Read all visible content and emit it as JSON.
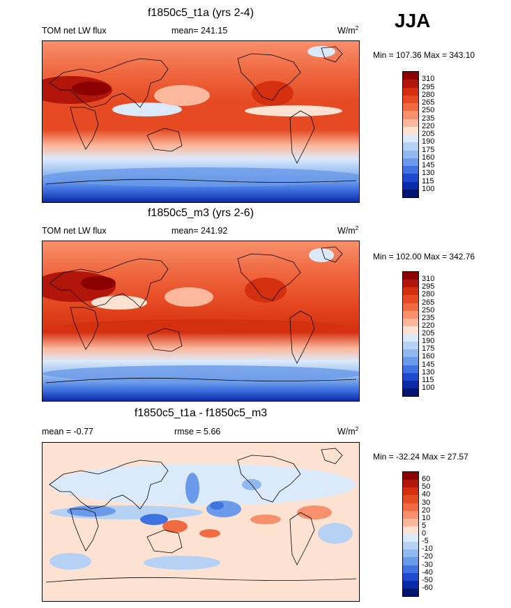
{
  "season": "JJA",
  "panels": [
    {
      "title": "f1850c5_t1a (yrs 2-4)",
      "left_label": "TOM net LW flux",
      "center_label": "mean= 241.15",
      "units": "W/m",
      "units_sup": "2",
      "min_max": "Min = 107.36 Max = 343.10",
      "colorbar": {
        "levels": [
          "310",
          "295",
          "280",
          "265",
          "250",
          "235",
          "220",
          "205",
          "190",
          "175",
          "160",
          "145",
          "130",
          "115",
          "100"
        ],
        "colors": [
          "#8b0000",
          "#b2160a",
          "#d4300f",
          "#e54a22",
          "#f06a42",
          "#f7906c",
          "#fbb89c",
          "#fde2d2",
          "#dbeafa",
          "#b5d2f5",
          "#8fb9ef",
          "#6a9ae9",
          "#3f73e0",
          "#1f48cf",
          "#0a2aa8",
          "#001470"
        ]
      }
    },
    {
      "title": "f1850c5_m3 (yrs 2-6)",
      "left_label": "TOM net LW flux",
      "center_label": "mean= 241.92",
      "units": "W/m",
      "units_sup": "2",
      "min_max": "Min = 102.00 Max = 342.76",
      "colorbar": {
        "levels": [
          "310",
          "295",
          "280",
          "265",
          "250",
          "235",
          "220",
          "205",
          "190",
          "175",
          "160",
          "145",
          "130",
          "115",
          "100"
        ],
        "colors": [
          "#8b0000",
          "#b2160a",
          "#d4300f",
          "#e54a22",
          "#f06a42",
          "#f7906c",
          "#fbb89c",
          "#fde2d2",
          "#dbeafa",
          "#b5d2f5",
          "#8fb9ef",
          "#6a9ae9",
          "#3f73e0",
          "#1f48cf",
          "#0a2aa8",
          "#001470"
        ]
      }
    },
    {
      "title": "f1850c5_t1a - f1850c5_m3",
      "left_label": "mean =  -0.77",
      "center_label": "rmse =   5.66",
      "units": "W/m",
      "units_sup": "2",
      "min_max": "Min = -32.24 Max =  27.57",
      "colorbar": {
        "levels": [
          "60",
          "50",
          "40",
          "30",
          "20",
          "10",
          "5",
          "0",
          "-5",
          "-10",
          "-20",
          "-30",
          "-40",
          "-50",
          "-60"
        ],
        "colors": [
          "#8b0000",
          "#b2160a",
          "#d4300f",
          "#e54a22",
          "#f06a42",
          "#f7906c",
          "#fbb89c",
          "#fde2d2",
          "#dbeafa",
          "#b5d2f5",
          "#8fb9ef",
          "#6a9ae9",
          "#3f73e0",
          "#1f48cf",
          "#0a2aa8",
          "#001470"
        ]
      }
    }
  ]
}
